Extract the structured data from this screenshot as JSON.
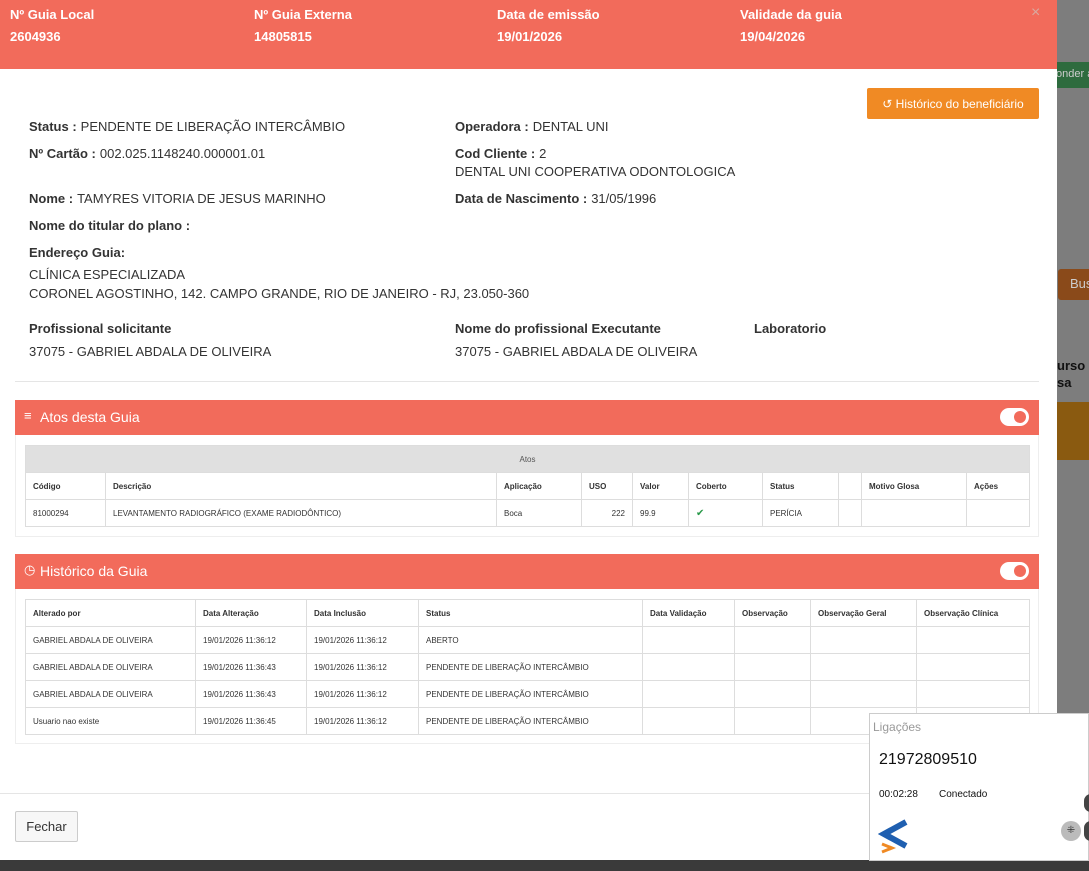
{
  "background": {
    "fragments": [
      "onder a",
      "Bus",
      "urso",
      "sa"
    ]
  },
  "header": {
    "fields": [
      {
        "label": "Nº Guia Local",
        "value": "2604936"
      },
      {
        "label": "Nº Guia Externa",
        "value": "14805815"
      },
      {
        "label": "Data de emissão",
        "value": "19/01/2026"
      },
      {
        "label": "Validade da guia",
        "value": "19/04/2026"
      }
    ],
    "close": "×"
  },
  "history_button": "Histórico do beneficiário",
  "details": {
    "status": {
      "label": "Status :",
      "value": "PENDENTE DE LIBERAÇÃO INTERCÂMBIO"
    },
    "operadora": {
      "label": "Operadora :",
      "value": "DENTAL UNI"
    },
    "cartao": {
      "label": "Nº Cartão :",
      "value": "002.025.1148240.000001.01"
    },
    "cod_cliente": {
      "label": "Cod Cliente :",
      "value": "2",
      "extra": "DENTAL UNI COOPERATIVA ODONTOLOGICA"
    },
    "nome": {
      "label": "Nome :",
      "value": "TAMYRES VITORIA DE JESUS MARINHO"
    },
    "nascimento": {
      "label": "Data de Nascimento :",
      "value": "31/05/1996"
    },
    "titular": {
      "label": "Nome do titular do plano :"
    },
    "endereco": {
      "label": "Endereço Guia:",
      "lines": [
        "CLÍNICA ESPECIALIZADA",
        "CORONEL AGOSTINHO, 142. CAMPO GRANDE, RIO DE JANEIRO - RJ, 23.050-360"
      ]
    },
    "solicitante": {
      "label": "Profissional solicitante",
      "value": "37075 - GABRIEL ABDALA DE OLIVEIRA"
    },
    "executante": {
      "label": "Nome do profissional Executante",
      "value": "37075 - GABRIEL ABDALA DE OLIVEIRA"
    },
    "laboratorio": {
      "label": "Laboratorio"
    }
  },
  "atos": {
    "title": "Atos desta Guia",
    "caption": "Atos",
    "columns": [
      "Código",
      "Descrição",
      "Aplicação",
      "USO",
      "Valor",
      "Coberto",
      "Status",
      null,
      "Motivo Glosa",
      "Ações"
    ],
    "rows": [
      [
        "81000294",
        "LEVANTAMENTO RADIOGRÁFICO (EXAME RADIODÔNTICO)",
        "Boca",
        "222",
        "99.9",
        true,
        "PERÍCIA",
        null,
        null,
        null
      ]
    ]
  },
  "historico": {
    "title": "Histórico da Guia",
    "columns": [
      "Alterado por",
      "Data Alteração",
      "Data Inclusão",
      "Status",
      "Data Validação",
      "Observação",
      "Observação Geral",
      "Observação Clínica"
    ],
    "rows": [
      [
        "GABRIEL ABDALA DE OLIVEIRA",
        "19/01/2026 11:36:12",
        "19/01/2026 11:36:12",
        "ABERTO",
        null,
        null,
        null,
        null
      ],
      [
        "GABRIEL ABDALA DE OLIVEIRA",
        "19/01/2026 11:36:43",
        "19/01/2026 11:36:12",
        "PENDENTE DE LIBERAÇÃO INTERCÂMBIO",
        null,
        null,
        null,
        null
      ],
      [
        "GABRIEL ABDALA DE OLIVEIRA",
        "19/01/2026 11:36:43",
        "19/01/2026 11:36:12",
        "PENDENTE DE LIBERAÇÃO INTERCÂMBIO",
        null,
        null,
        null,
        null
      ],
      [
        "Usuario nao existe",
        "19/01/2026 11:36:45",
        "19/01/2026 11:36:12",
        "PENDENTE DE LIBERAÇÃO INTERCÂMBIO",
        null,
        null,
        null,
        null
      ]
    ]
  },
  "footer": {
    "close_button": "Fechar"
  },
  "calls": {
    "title": "Ligações",
    "number": "21972809510",
    "duration": "00:02:28",
    "state": "Conectado"
  }
}
